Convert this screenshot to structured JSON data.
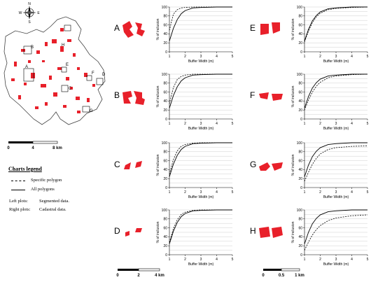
{
  "map": {
    "compass": {
      "N": "N",
      "S": "S",
      "E": "E",
      "W": "W"
    },
    "markers": [
      "A",
      "B",
      "C",
      "D",
      "E",
      "F",
      "G",
      "H"
    ],
    "scalebar": {
      "ticks": [
        "0",
        "4",
        "8 km"
      ]
    }
  },
  "legend": {
    "title": "Charts legend",
    "specific": "Specific polygon",
    "all": "All polygons",
    "note_left_label": "Left plots:",
    "note_left_value": "Segmented data.",
    "note_right_label": "Right plots:",
    "note_right_value": "Cadastral data."
  },
  "scalebars": {
    "left": {
      "ticks": [
        "0",
        "2",
        "4 km"
      ]
    },
    "right": {
      "ticks": [
        "0",
        "0.5",
        "1 km"
      ]
    }
  },
  "colors": {
    "polygon": "#e8202a",
    "grid": "#cfcfcf"
  },
  "chart_data": [
    {
      "id": "A",
      "type": "line",
      "panel": "left",
      "title": "A",
      "xlabel": "Buffer Width (m)",
      "ylabel": "% of inclusion",
      "xlim": [
        1,
        5
      ],
      "ylim": [
        0,
        100
      ],
      "xticks": [
        "1",
        "2",
        "3",
        "4",
        "5"
      ],
      "yticks": [
        "0",
        "20",
        "40",
        "60",
        "80",
        "100"
      ],
      "x": [
        1,
        1.25,
        1.5,
        1.75,
        2,
        2.5,
        3,
        4,
        5
      ],
      "series": [
        {
          "name": "Specific polygon",
          "style": "dashed",
          "values": [
            48,
            84,
            94,
            98,
            99,
            100,
            100,
            100,
            100
          ]
        },
        {
          "name": "All polygons",
          "style": "solid",
          "values": [
            24,
            52,
            72,
            85,
            92,
            98,
            99,
            100,
            100
          ]
        }
      ]
    },
    {
      "id": "B",
      "type": "line",
      "panel": "left",
      "title": "B",
      "xlabel": "Buffer Width (m)",
      "ylabel": "% of inclusion",
      "xlim": [
        1,
        5
      ],
      "ylim": [
        0,
        100
      ],
      "xticks": [
        "1",
        "2",
        "3",
        "4",
        "5"
      ],
      "yticks": [
        "0",
        "20",
        "40",
        "60",
        "80",
        "100"
      ],
      "x": [
        1,
        1.25,
        1.5,
        1.75,
        2,
        2.5,
        3,
        4,
        5
      ],
      "series": [
        {
          "name": "Specific polygon",
          "style": "dashed",
          "values": [
            34,
            70,
            88,
            95,
            98,
            100,
            100,
            100,
            100
          ]
        },
        {
          "name": "All polygons",
          "style": "solid",
          "values": [
            24,
            52,
            72,
            85,
            92,
            98,
            99,
            100,
            100
          ]
        }
      ]
    },
    {
      "id": "C",
      "type": "line",
      "panel": "left",
      "title": "C",
      "xlabel": "Buffer Width (m)",
      "ylabel": "% of inclusion",
      "xlim": [
        1,
        5
      ],
      "ylim": [
        0,
        100
      ],
      "xticks": [
        "1",
        "2",
        "3",
        "4",
        "5"
      ],
      "yticks": [
        "0",
        "20",
        "40",
        "60",
        "80",
        "100"
      ],
      "x": [
        1,
        1.25,
        1.5,
        1.75,
        2,
        2.5,
        3,
        4,
        5
      ],
      "series": [
        {
          "name": "Specific polygon",
          "style": "dashed",
          "values": [
            30,
            62,
            82,
            92,
            96,
            99,
            100,
            100,
            100
          ]
        },
        {
          "name": "All polygons",
          "style": "solid",
          "values": [
            24,
            52,
            72,
            85,
            92,
            98,
            99,
            100,
            100
          ]
        }
      ]
    },
    {
      "id": "D",
      "type": "line",
      "panel": "left",
      "title": "D",
      "xlabel": "Buffer Width (m)",
      "ylabel": "% of inclusion",
      "xlim": [
        1,
        5
      ],
      "ylim": [
        0,
        100
      ],
      "xticks": [
        "1",
        "2",
        "3",
        "4",
        "5"
      ],
      "yticks": [
        "0",
        "20",
        "40",
        "60",
        "80",
        "100"
      ],
      "x": [
        1,
        1.25,
        1.5,
        1.75,
        2,
        2.5,
        3,
        4,
        5
      ],
      "series": [
        {
          "name": "Specific polygon",
          "style": "dashed",
          "values": [
            28,
            58,
            78,
            90,
            95,
            99,
            100,
            100,
            100
          ]
        },
        {
          "name": "All polygons",
          "style": "solid",
          "values": [
            24,
            52,
            72,
            85,
            92,
            98,
            99,
            100,
            100
          ]
        }
      ]
    },
    {
      "id": "E",
      "type": "line",
      "panel": "right",
      "title": "E",
      "xlabel": "Buffer Width (m)",
      "ylabel": "% of inclusion",
      "xlim": [
        1,
        5
      ],
      "ylim": [
        0,
        100
      ],
      "xticks": [
        "1",
        "2",
        "3",
        "4",
        "5"
      ],
      "yticks": [
        "0",
        "20",
        "40",
        "60",
        "80",
        "100"
      ],
      "x": [
        1,
        1.25,
        1.5,
        1.75,
        2,
        2.5,
        3,
        4,
        5
      ],
      "series": [
        {
          "name": "Specific polygon",
          "style": "dashed",
          "values": [
            22,
            46,
            65,
            78,
            86,
            94,
            97,
            99,
            100
          ]
        },
        {
          "name": "All polygons",
          "style": "solid",
          "values": [
            24,
            50,
            69,
            81,
            89,
            96,
            98,
            100,
            100
          ]
        }
      ]
    },
    {
      "id": "F",
      "type": "line",
      "panel": "right",
      "title": "F",
      "xlabel": "Buffer Width (m)",
      "ylabel": "% of inclusion",
      "xlim": [
        1,
        5
      ],
      "ylim": [
        0,
        100
      ],
      "xticks": [
        "1",
        "2",
        "3",
        "4",
        "5"
      ],
      "yticks": [
        "0",
        "20",
        "40",
        "60",
        "80",
        "100"
      ],
      "x": [
        1,
        1.25,
        1.5,
        1.75,
        2,
        2.5,
        3,
        4,
        5
      ],
      "series": [
        {
          "name": "Specific polygon",
          "style": "dashed",
          "values": [
            20,
            42,
            60,
            73,
            82,
            92,
            96,
            99,
            100
          ]
        },
        {
          "name": "All polygons",
          "style": "solid",
          "values": [
            24,
            50,
            69,
            81,
            89,
            96,
            98,
            100,
            100
          ]
        }
      ]
    },
    {
      "id": "G",
      "type": "line",
      "panel": "right",
      "title": "G",
      "xlabel": "Buffer Width (m)",
      "ylabel": "% of inclusion",
      "xlim": [
        1,
        5
      ],
      "ylim": [
        0,
        100
      ],
      "xticks": [
        "1",
        "2",
        "3",
        "4",
        "5"
      ],
      "yticks": [
        "0",
        "20",
        "40",
        "60",
        "80",
        "100"
      ],
      "x": [
        1,
        1.25,
        1.5,
        1.75,
        2,
        2.5,
        3,
        4,
        5
      ],
      "series": [
        {
          "name": "Specific polygon",
          "style": "dashed",
          "values": [
            14,
            34,
            52,
            65,
            75,
            85,
            89,
            92,
            93
          ]
        },
        {
          "name": "All polygons",
          "style": "solid",
          "values": [
            24,
            50,
            69,
            81,
            89,
            96,
            98,
            100,
            100
          ]
        }
      ]
    },
    {
      "id": "H",
      "type": "line",
      "panel": "right",
      "title": "H",
      "xlabel": "Buffer Width (m)",
      "ylabel": "% of inclusion",
      "xlim": [
        1,
        5
      ],
      "ylim": [
        0,
        100
      ],
      "xticks": [
        "1",
        "2",
        "3",
        "4",
        "5"
      ],
      "yticks": [
        "0",
        "20",
        "40",
        "60",
        "80",
        "100"
      ],
      "x": [
        1,
        1.25,
        1.5,
        1.75,
        2,
        2.5,
        3,
        4,
        5
      ],
      "series": [
        {
          "name": "Specific polygon",
          "style": "dashed",
          "values": [
            10,
            28,
            44,
            56,
            65,
            76,
            82,
            87,
            89
          ]
        },
        {
          "name": "All polygons",
          "style": "solid",
          "values": [
            24,
            50,
            69,
            81,
            89,
            96,
            98,
            100,
            100
          ]
        }
      ]
    }
  ]
}
